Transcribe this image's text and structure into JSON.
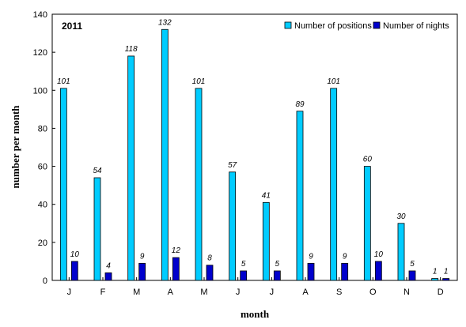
{
  "chart_data": {
    "type": "bar",
    "title": "2011",
    "xlabel": "month",
    "ylabel": "number per month",
    "categories": [
      "J",
      "F",
      "M",
      "A",
      "M",
      "J",
      "J",
      "A",
      "S",
      "O",
      "N",
      "D"
    ],
    "series": [
      {
        "name": "Number of positions",
        "color": "#00ccff",
        "values": [
          101,
          54,
          118,
          132,
          101,
          57,
          41,
          89,
          101,
          60,
          30,
          1
        ]
      },
      {
        "name": "Number of nights",
        "color": "#0000cc",
        "values": [
          10,
          4,
          9,
          12,
          8,
          5,
          5,
          9,
          9,
          10,
          5,
          1
        ]
      }
    ],
    "ylim": [
      0,
      140
    ],
    "yticks": [
      0,
      20,
      40,
      60,
      80,
      100,
      120,
      140
    ],
    "legend": "top-right",
    "grid": false
  }
}
